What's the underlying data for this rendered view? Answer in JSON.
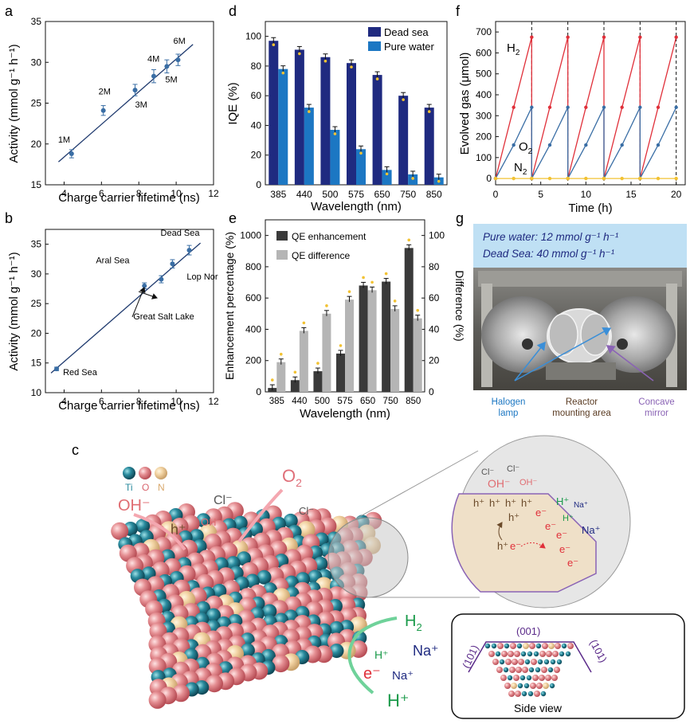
{
  "panel_labels": {
    "a": "a",
    "b": "b",
    "c": "c",
    "d": "d",
    "e": "e",
    "f": "f",
    "g": "g"
  },
  "colors": {
    "navy": "#1f2a80",
    "blue": "#1c77c3",
    "fit": "#1f3a6e",
    "red": "#e0303a",
    "steel": "#3a6ea5",
    "yellow": "#f2c233",
    "dark": "#3a3a3a",
    "gray": "#b5b5b5",
    "photo_banner": "#bfe0f4"
  },
  "chart_data": [
    {
      "id": "a",
      "type": "scatter",
      "xlabel": "Charge carrier lifetime (ns)",
      "ylabel": "Activity (mmol g⁻¹ h⁻¹)",
      "xlim": [
        3,
        12
      ],
      "ylim": [
        15,
        35
      ],
      "xticks": [
        "4",
        "6",
        "8",
        "10",
        "12"
      ],
      "yticks": [
        "15",
        "20",
        "25",
        "30",
        "35"
      ],
      "points": [
        {
          "label": "1M",
          "x": 4.4,
          "y": 18.8,
          "err": 0.5
        },
        {
          "label": "2M",
          "x": 6.1,
          "y": 24.1,
          "err": 0.6
        },
        {
          "label": "3M",
          "x": 7.8,
          "y": 26.6,
          "err": 0.7
        },
        {
          "label": "4M",
          "x": 8.8,
          "y": 28.3,
          "err": 0.8
        },
        {
          "label": "5M",
          "x": 9.5,
          "y": 29.5,
          "err": 0.8
        },
        {
          "label": "6M",
          "x": 10.1,
          "y": 30.3,
          "err": 0.7
        }
      ],
      "fit": [
        [
          3.7,
          17.8
        ],
        [
          10.9,
          32.2
        ]
      ]
    },
    {
      "id": "b",
      "type": "scatter",
      "xlabel": "Charge carrier lifetime (ns)",
      "ylabel": "Activity (mmol g⁻¹ h⁻¹)",
      "xlim": [
        3,
        12
      ],
      "ylim": [
        10,
        37.5
      ],
      "xticks": [
        "4",
        "6",
        "8",
        "10",
        "12"
      ],
      "yticks": [
        "10",
        "15",
        "20",
        "25",
        "30",
        "35"
      ],
      "points": [
        {
          "label": "Red Sea",
          "x": 3.6,
          "y": 14.0,
          "err": 0.3
        },
        {
          "label": "Great Salt Lake",
          "x": 8.3,
          "y": 28.0,
          "err": 0.5
        },
        {
          "label": "Aral Sea",
          "x": 9.2,
          "y": 29.1,
          "err": 0.6
        },
        {
          "label": "Lop Nor",
          "x": 9.8,
          "y": 31.7,
          "err": 0.7
        },
        {
          "label": "Dead Sea",
          "x": 10.7,
          "y": 34.0,
          "err": 0.8
        }
      ],
      "fit": [
        [
          3.3,
          13.3
        ],
        [
          11.3,
          35.2
        ]
      ]
    },
    {
      "id": "d",
      "type": "bar",
      "xlabel": "Wavelength (nm)",
      "ylabel": "IQE (%)",
      "ylim": [
        0,
        110
      ],
      "categories": [
        "385",
        "440",
        "500",
        "575",
        "650",
        "750",
        "850"
      ],
      "yticks": [
        "0",
        "20",
        "40",
        "60",
        "80",
        "100"
      ],
      "series": [
        {
          "name": "Dead sea",
          "values": [
            97,
            91,
            86,
            82,
            74,
            60,
            52
          ]
        },
        {
          "name": "Pure water",
          "values": [
            78,
            52,
            37,
            24,
            10,
            7,
            5
          ]
        }
      ]
    },
    {
      "id": "e",
      "type": "bar",
      "xlabel": "Wavelength (nm)",
      "ylabel": "Enhancement percentage (%)",
      "y2label": "Difference (%)",
      "ylim": [
        0,
        1100
      ],
      "y2lim": [
        0,
        110
      ],
      "categories": [
        "385",
        "440",
        "500",
        "575",
        "650",
        "750",
        "850"
      ],
      "yticks": [
        "0",
        "200",
        "400",
        "600",
        "800",
        "1000"
      ],
      "y2ticks": [
        "0",
        "20",
        "40",
        "60",
        "80",
        "100"
      ],
      "series": [
        {
          "name": "QE enhancement",
          "axis": "left",
          "values": [
            25,
            75,
            132,
            245,
            680,
            705,
            920
          ]
        },
        {
          "name": "QE difference",
          "axis": "right",
          "values": [
            19,
            39,
            50,
            59,
            65,
            53,
            47
          ]
        }
      ]
    },
    {
      "id": "f",
      "type": "line",
      "xlabel": "Time (h)",
      "ylabel": "Evolved gas (μmol)",
      "xlim": [
        0,
        21
      ],
      "ylim": [
        -30,
        750
      ],
      "xticks": [
        "0",
        "5",
        "10",
        "15",
        "20"
      ],
      "yticks": [
        "0",
        "100",
        "200",
        "300",
        "400",
        "500",
        "600",
        "700"
      ],
      "cycle_boundaries": [
        4,
        8,
        12,
        16,
        20
      ],
      "series": [
        {
          "name": "H₂",
          "cycle_values": [
            0,
            340,
            675
          ]
        },
        {
          "name": "O₂",
          "cycle_values": [
            0,
            160,
            340
          ]
        },
        {
          "name": "N₂",
          "cycle_values": [
            0,
            0,
            0
          ]
        }
      ]
    }
  ],
  "series_labels": {
    "h2": "H",
    "o2": "O",
    "n2": "N",
    "sub2": "2"
  },
  "legend_d": [
    "Dead sea",
    "Pure water"
  ],
  "legend_e": [
    "QE enhancement",
    "QE difference"
  ],
  "photo": {
    "banner_line1": "Pure water: 12 mmol g⁻¹ h⁻¹",
    "banner_line2": "Dead Sea: 40 mmol g⁻¹ h⁻¹",
    "callout_halogen": "Halogen\nlamp",
    "callout_reactor": "Reactor\nmounting area",
    "callout_mirror": "Concave\nmirror"
  },
  "schematic": {
    "legend_ti": "Ti",
    "legend_o": "O",
    "legend_n": "N",
    "oh": "OH⁻",
    "cl": "Cl⁻",
    "hplus": "h⁺",
    "o2": "O",
    "o2sub": "2",
    "h2": "H",
    "h2sub": "2",
    "Hplus": "H⁺",
    "Naplus": "Na⁺",
    "eminus": "e⁻",
    "side_view": "Side view",
    "facet_001": "(001)",
    "facet_101": "(101)"
  }
}
